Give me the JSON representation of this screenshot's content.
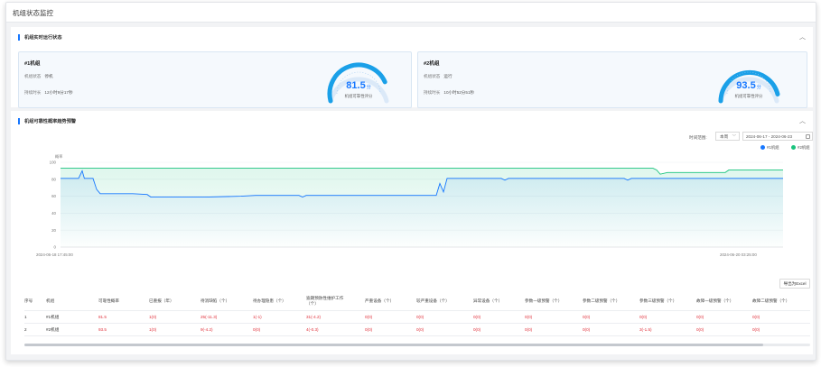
{
  "page_title": "机组状态监控",
  "status_panel": {
    "title": "机组实时运行状态",
    "units": [
      {
        "name": "#1机组",
        "status_label": "机组状态",
        "status_value": "停机",
        "duration_label": "持续时长",
        "duration_value": "12小时9分17秒",
        "score": "81.5",
        "score_unit": "分",
        "score_label": "机组可靠性评分",
        "score_fraction": 0.815
      },
      {
        "name": "#2机组",
        "status_label": "机组状态",
        "status_value": "运行",
        "duration_label": "持续时长",
        "duration_value": "10小时52分51秒",
        "score": "93.5",
        "score_unit": "分",
        "score_label": "机组可靠性评分",
        "score_fraction": 0.935
      }
    ]
  },
  "trend_panel": {
    "title": "机组可靠性概率趋势预警",
    "range_label": "时间范围:",
    "range_select": "本周",
    "date_range": "2024-06-17 - 2024-06-23",
    "legend": [
      {
        "name": "#1机组",
        "color": "#1677ff"
      },
      {
        "name": "#2机组",
        "color": "#19c37d"
      }
    ],
    "export_label": "导出为Excel"
  },
  "chart_data": {
    "type": "line",
    "ylabel": "概率",
    "ylim": [
      0,
      100
    ],
    "yticks": [
      "0",
      "20",
      "40",
      "60",
      "80",
      "100"
    ],
    "xticks": [
      "2024-06-18 17:45:00",
      "2024-06-20 03:25:00"
    ],
    "series": [
      {
        "name": "#1机组",
        "color": "#1677ff",
        "points": [
          [
            0,
            81
          ],
          [
            0.025,
            81
          ],
          [
            0.03,
            90
          ],
          [
            0.033,
            81
          ],
          [
            0.045,
            81
          ],
          [
            0.05,
            68
          ],
          [
            0.055,
            63
          ],
          [
            0.1,
            63
          ],
          [
            0.12,
            62
          ],
          [
            0.125,
            59
          ],
          [
            0.2,
            59
          ],
          [
            0.25,
            60
          ],
          [
            0.27,
            61
          ],
          [
            0.33,
            61
          ],
          [
            0.335,
            59
          ],
          [
            0.34,
            61
          ],
          [
            0.39,
            61
          ],
          [
            0.4,
            61
          ],
          [
            0.52,
            61
          ],
          [
            0.525,
            75
          ],
          [
            0.53,
            65
          ],
          [
            0.535,
            81
          ],
          [
            0.58,
            81
          ],
          [
            0.61,
            81
          ],
          [
            0.615,
            79
          ],
          [
            0.62,
            81
          ],
          [
            0.7,
            81
          ],
          [
            0.78,
            81
          ],
          [
            0.785,
            79
          ],
          [
            0.79,
            81
          ],
          [
            0.86,
            81
          ],
          [
            0.87,
            81
          ],
          [
            1,
            81
          ]
        ]
      },
      {
        "name": "#2机组",
        "color": "#19c37d",
        "points": [
          [
            0,
            93
          ],
          [
            0.4,
            93
          ],
          [
            0.6,
            93
          ],
          [
            0.82,
            93
          ],
          [
            0.825,
            91
          ],
          [
            0.83,
            86
          ],
          [
            0.84,
            88
          ],
          [
            0.9,
            88
          ],
          [
            0.92,
            88
          ],
          [
            0.925,
            91
          ],
          [
            1,
            91
          ]
        ]
      }
    ]
  },
  "table": {
    "headers": [
      "序号",
      "机组",
      "可靠性概率",
      "已重报（年）",
      "待消缺陷（个）",
      "待办理隐患（个）",
      "逾期预防性维护工作（个）",
      "严重设备（个）",
      "较严重设备（个）",
      "异常设备（个）",
      "参数一级预警（个）",
      "参数二级预警（个）",
      "参数三级预警（个）",
      "故障一级预警（个）",
      "故障二级预警（个）"
    ],
    "rows": [
      {
        "cells": [
          "1",
          "#1机组",
          "81.5",
          "1(0)",
          "25(-11.3)",
          "1(-1)",
          "31(-4.2)",
          "0(0)",
          "0(0)",
          "0(0)",
          "0(0)",
          "0(0)",
          "0(0)",
          "0(0)",
          "0(0)"
        ]
      },
      {
        "cells": [
          "2",
          "#2机组",
          "93.5",
          "1(0)",
          "9(-4.2)",
          "0(0)",
          "4(-0.3)",
          "0(0)",
          "0(0)",
          "0(0)",
          "0(0)",
          "0(0)",
          "3(-1.5)",
          "0(0)",
          "0(0)"
        ]
      }
    ]
  }
}
